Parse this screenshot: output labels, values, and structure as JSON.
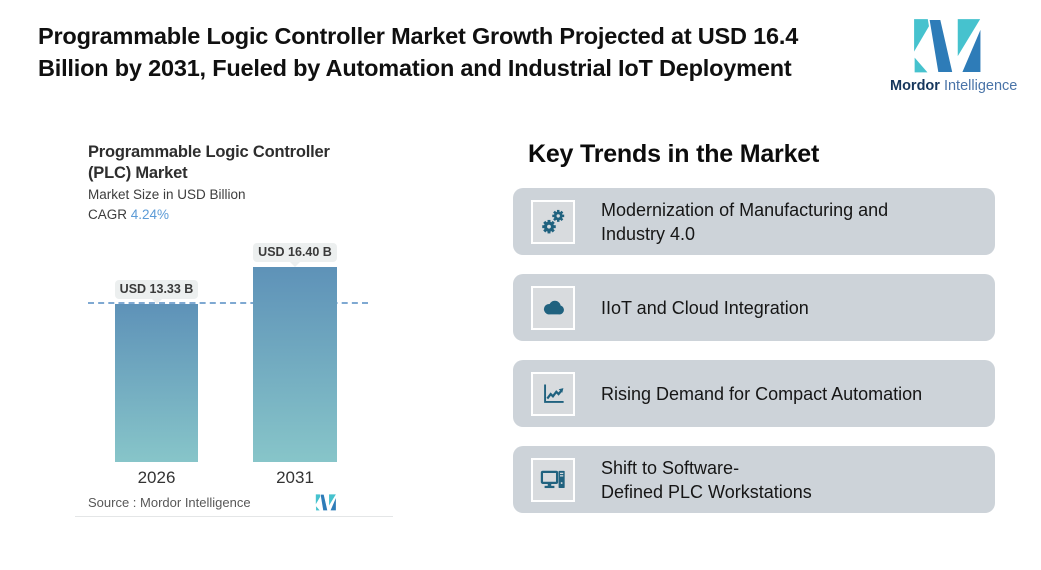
{
  "header": {
    "title_line1": "Programmable Logic Controller Market Growth Projected at USD 16.4",
    "title_line2": "Billion by 2031, Fueled by Automation and Industrial IoT Deployment"
  },
  "brand": {
    "name_bold": "Mordor",
    "name_regular": "Intelligence",
    "logo_icon": "mordor-intelligence-m-icon"
  },
  "chart": {
    "title_line1": "Programmable Logic Controller",
    "title_line2": "(PLC) Market",
    "subtitle": "Market Size in USD Billion",
    "cagr_label": "CAGR",
    "cagr_value": "4.24%",
    "source_label": "Source :  Mordor Intelligence"
  },
  "chart_data": {
    "type": "bar",
    "categories": [
      "2026",
      "2031"
    ],
    "values": [
      13.33,
      16.4
    ],
    "data_labels": [
      "USD 13.33 B",
      "USD 16.40 B"
    ],
    "title": "Programmable Logic Controller (PLC) Market",
    "subtitle": "Market Size in USD Billion",
    "cagr": "4.24%",
    "xlabel": "",
    "ylabel": "Market Size in USD Billion",
    "ylim": [
      0,
      16.4
    ],
    "grid": false,
    "annotations": [
      "dashed horizontal reference line at 13.33 (2026 level)"
    ],
    "source": "Mordor Intelligence",
    "bar_gradient_top": "#5E92B8",
    "bar_gradient_bottom": "#87C5C9"
  },
  "trends": {
    "heading": "Key Trends in the Market",
    "cards": [
      {
        "icon": "gears-icon",
        "text": "Modernization of Manufacturing and\nIndustry 4.0"
      },
      {
        "icon": "cloud-icon",
        "text": "IIoT and Cloud Integration"
      },
      {
        "icon": "line-chart-icon",
        "text": "Rising Demand for Compact Automation"
      },
      {
        "icon": "workstation-icon",
        "text": "Shift to Software-\nDefined PLC Workstations"
      }
    ]
  },
  "colors": {
    "card_background": "#CDD3D9",
    "icon_box_background": "#D8DBDE",
    "icon_glyph": "#20627F",
    "dashed_reference_line": "#7FA9D2",
    "tooltip_background": "#ECEFEF",
    "cagr_value_blue": "#5C9BD6",
    "brand_blue": "#2E7CB8",
    "brand_teal": "#46C2CE"
  }
}
